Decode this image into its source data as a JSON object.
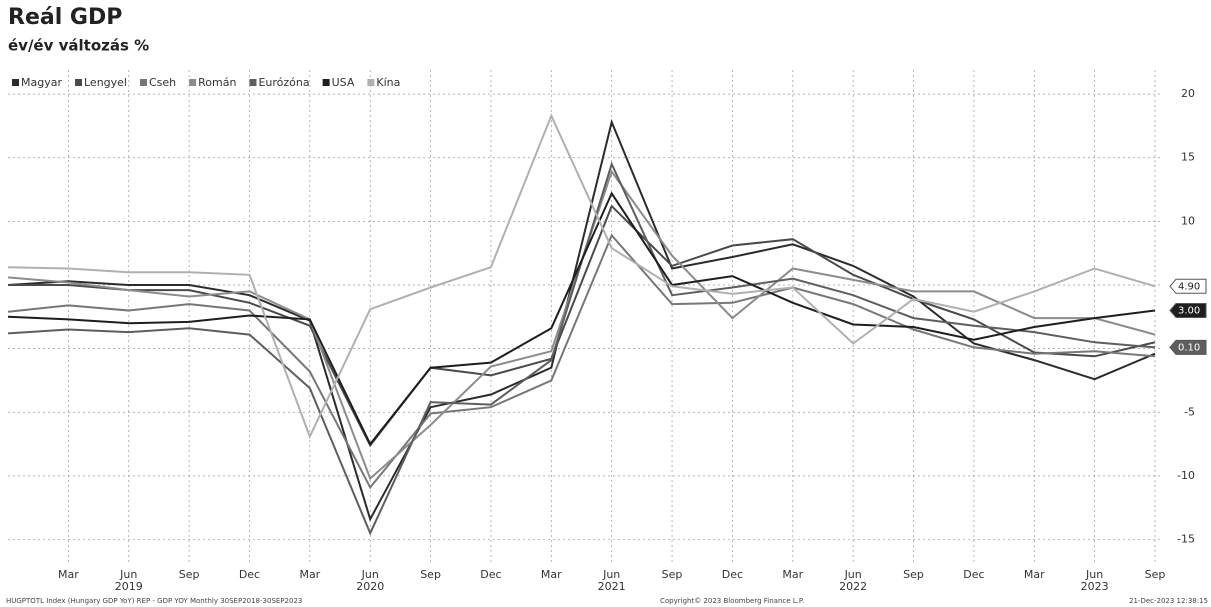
{
  "chart_data": {
    "type": "line",
    "title": "Reál GDP",
    "subtitle": "év/év változás %",
    "categories": [
      null,
      "Mar",
      "Jun",
      "Sep",
      "Dec",
      "Mar",
      "Jun",
      "Sep",
      "Dec",
      "Mar",
      "Jun",
      "Sep",
      "Dec",
      "Mar",
      "Jun",
      "Sep",
      "Dec",
      "Mar",
      "Jun",
      "Sep"
    ],
    "years": [
      null,
      null,
      "2019",
      null,
      null,
      null,
      "2020",
      null,
      null,
      null,
      "2021",
      null,
      null,
      null,
      "2022",
      null,
      null,
      null,
      "2023",
      null
    ],
    "series": [
      {
        "name": "Magyar",
        "color": "#2b2b2b",
        "values": [
          5.0,
          5.3,
          5.0,
          5.0,
          4.2,
          2.2,
          -13.4,
          -4.6,
          -3.6,
          -1.5,
          17.8,
          6.3,
          7.2,
          8.2,
          6.5,
          4.1,
          0.4,
          -0.9,
          -2.4,
          -0.4
        ]
      },
      {
        "name": "Lengyel",
        "color": "#4a4a4a",
        "values": [
          5.0,
          5.0,
          4.6,
          4.6,
          3.6,
          1.8,
          -7.6,
          -1.5,
          -2.1,
          -0.8,
          11.2,
          6.5,
          8.1,
          8.6,
          5.8,
          3.9,
          2.3,
          -0.3,
          -0.6,
          0.5
        ]
      },
      {
        "name": "Cseh",
        "color": "#777777",
        "values": [
          2.9,
          3.4,
          3.0,
          3.5,
          3.0,
          -1.8,
          -10.9,
          -5.1,
          -4.6,
          -2.5,
          8.9,
          3.5,
          3.6,
          4.8,
          3.5,
          1.5,
          0.1,
          -0.4,
          -0.2,
          -0.6
        ]
      },
      {
        "name": "Román",
        "color": "#8c8c8c",
        "values": [
          5.6,
          5.2,
          4.6,
          4.1,
          4.5,
          2.3,
          -10.2,
          -6.0,
          -1.4,
          -0.2,
          13.9,
          7.3,
          2.4,
          6.3,
          5.4,
          4.5,
          4.5,
          2.4,
          2.4,
          1.1
        ]
      },
      {
        "name": "Eurózóna",
        "color": "#5e5e5e",
        "values": [
          1.2,
          1.5,
          1.3,
          1.6,
          1.1,
          -3.1,
          -14.5,
          -4.2,
          -4.4,
          -0.9,
          14.5,
          4.2,
          4.8,
          5.5,
          4.2,
          2.4,
          1.8,
          1.3,
          0.5,
          0.1
        ],
        "value_labels": [
          null,
          null,
          null,
          null,
          null,
          null,
          null,
          null,
          null,
          null,
          null,
          null,
          null,
          null,
          null,
          null,
          null,
          null,
          null,
          "0.10"
        ]
      },
      {
        "name": "USA",
        "color": "#1e1e1e",
        "values": [
          2.5,
          2.3,
          2.0,
          2.1,
          2.6,
          2.3,
          -7.5,
          -1.5,
          -1.1,
          1.6,
          12.2,
          5.0,
          5.7,
          3.6,
          1.9,
          1.7,
          0.7,
          1.7,
          2.4,
          3.0
        ],
        "value_labels": [
          null,
          null,
          null,
          null,
          null,
          null,
          null,
          null,
          null,
          null,
          null,
          null,
          null,
          null,
          null,
          null,
          null,
          null,
          null,
          "3.00"
        ]
      },
      {
        "name": "Kína",
        "color": "#b0b0b0",
        "values": [
          6.4,
          6.3,
          6.0,
          6.0,
          5.8,
          -6.9,
          3.1,
          4.8,
          6.4,
          18.3,
          7.9,
          4.9,
          4.3,
          4.8,
          0.4,
          3.9,
          2.9,
          4.5,
          6.3,
          4.9
        ],
        "value_labels": [
          null,
          null,
          null,
          null,
          null,
          null,
          null,
          null,
          null,
          null,
          null,
          null,
          null,
          null,
          null,
          null,
          null,
          null,
          null,
          "4.90"
        ]
      }
    ],
    "ylim": [
      -17,
      21.5
    ],
    "yticks": [
      -15,
      -10,
      -5,
      0,
      5,
      10,
      15,
      20
    ],
    "grid": true,
    "legend": "top-left",
    "footer_left": "HUGPTOTL Index (Hungary GDP YoY) REP - GDP YOY Monthly 30SEP2018-30SEP2023",
    "footer_center": "Copyright© 2023 Bloomberg Finance L.P.",
    "footer_right": "21-Dec-2023 12:38:15"
  }
}
